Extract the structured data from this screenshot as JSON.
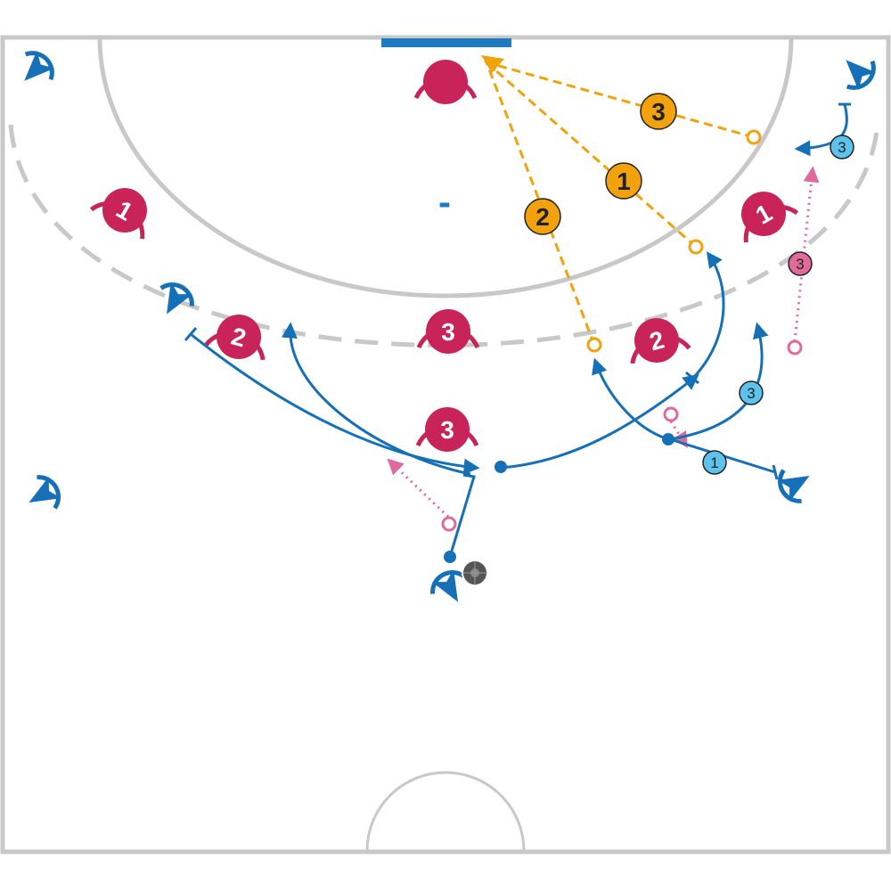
{
  "court": {
    "line_color": "#c8c8c8",
    "goal_color": "#1f7bc1",
    "zone_marker": "-"
  },
  "colors": {
    "attacker": "#1670b8",
    "defender": "#c8245a",
    "pass_orange": "#f2a20c",
    "step_light_blue": "#5ec3ec",
    "step_pink": "#e06a9c",
    "ball": "#555555"
  },
  "defenders": [
    {
      "id": "gk",
      "label": ""
    },
    {
      "id": "d1-left",
      "label": "1"
    },
    {
      "id": "d1-right",
      "label": "1"
    },
    {
      "id": "d2-left",
      "label": "2"
    },
    {
      "id": "d2-right",
      "label": "2"
    },
    {
      "id": "d3-top",
      "label": "3"
    },
    {
      "id": "d3-front",
      "label": "3"
    }
  ],
  "pass_steps": [
    {
      "id": "pass-1",
      "label": "1"
    },
    {
      "id": "pass-2",
      "label": "2"
    },
    {
      "id": "pass-3",
      "label": "3"
    }
  ],
  "move_steps": [
    {
      "id": "move-right-back",
      "label": "1"
    },
    {
      "id": "move-right-wing",
      "label": "3"
    },
    {
      "id": "move-right-pivot",
      "label": "3"
    }
  ],
  "pink_steps": [
    {
      "id": "pink-right",
      "label": "3"
    }
  ]
}
